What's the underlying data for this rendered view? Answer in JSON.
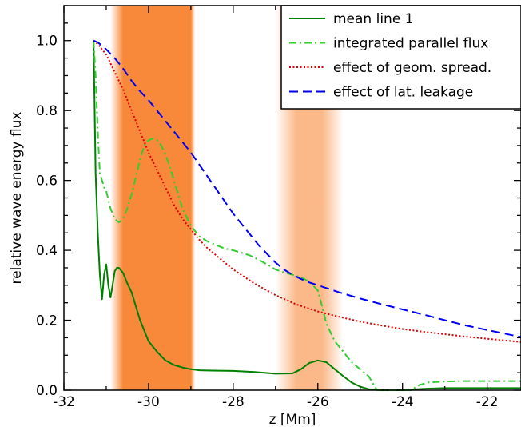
{
  "chart_data": {
    "type": "line",
    "title": "",
    "xlabel": "z [Mm]",
    "ylabel": "relative wave energy flux",
    "xlim": [
      -32,
      -21.2
    ],
    "ylim": [
      0,
      1.1
    ],
    "x_ticks": [
      -32,
      -30,
      -28,
      -26,
      -24,
      -22
    ],
    "x_tick_labels": [
      "-32",
      "-30",
      "-28",
      "-26",
      "-24",
      "-22"
    ],
    "y_ticks": [
      0.0,
      0.2,
      0.4,
      0.6,
      0.8,
      1.0
    ],
    "y_tick_labels": [
      "0.0",
      "0.2",
      "0.4",
      "0.6",
      "0.8",
      "1.0"
    ],
    "grid": false,
    "legend_position": "top-right",
    "shaded_bands": [
      {
        "x_start": -30.9,
        "x_end": -28.9,
        "core_start": -30.6,
        "core_end": -29.0,
        "color": "#f9893a"
      },
      {
        "x_start": -27.0,
        "x_end": -25.4,
        "core_start": -26.5,
        "core_end": -25.9,
        "color": "#fbb888"
      }
    ],
    "series": [
      {
        "name": "mean line 1",
        "color": "#008000",
        "style": "solid",
        "x": [
          -31.3,
          -31.25,
          -31.2,
          -31.15,
          -31.1,
          -31.05,
          -31.0,
          -30.95,
          -30.9,
          -30.85,
          -30.8,
          -30.75,
          -30.7,
          -30.6,
          -30.5,
          -30.4,
          -30.3,
          -30.2,
          -30.0,
          -29.8,
          -29.6,
          -29.4,
          -29.2,
          -29.0,
          -28.8,
          -28.5,
          -28.0,
          -27.5,
          -27.0,
          -26.6,
          -26.4,
          -26.2,
          -26.0,
          -25.8,
          -25.6,
          -25.4,
          -25.2,
          -25.0,
          -24.8,
          -24.5,
          -24.0,
          -23.5,
          -23.0,
          -22.5,
          -22.0,
          -21.2
        ],
        "y": [
          1.0,
          0.62,
          0.45,
          0.33,
          0.26,
          0.33,
          0.36,
          0.3,
          0.265,
          0.3,
          0.34,
          0.35,
          0.35,
          0.335,
          0.305,
          0.28,
          0.24,
          0.2,
          0.14,
          0.11,
          0.085,
          0.072,
          0.065,
          0.06,
          0.057,
          0.056,
          0.055,
          0.052,
          0.047,
          0.048,
          0.06,
          0.078,
          0.085,
          0.08,
          0.06,
          0.04,
          0.022,
          0.01,
          0.003,
          0.0,
          0.0,
          0.004,
          0.006,
          0.006,
          0.006,
          0.006
        ]
      },
      {
        "name": "integrated parallel flux",
        "color": "#32cd32",
        "style": "dashdot",
        "x": [
          -31.3,
          -31.25,
          -31.2,
          -31.15,
          -31.1,
          -31.05,
          -31.0,
          -30.9,
          -30.8,
          -30.7,
          -30.6,
          -30.5,
          -30.4,
          -30.3,
          -30.2,
          -30.1,
          -30.0,
          -29.9,
          -29.8,
          -29.7,
          -29.6,
          -29.5,
          -29.4,
          -29.3,
          -29.2,
          -29.0,
          -28.8,
          -28.6,
          -28.4,
          -28.2,
          -28.0,
          -27.8,
          -27.6,
          -27.4,
          -27.2,
          -27.0,
          -26.8,
          -26.6,
          -26.4,
          -26.2,
          -26.0,
          -25.9,
          -25.8,
          -25.6,
          -25.4,
          -25.2,
          -25.0,
          -24.8,
          -24.6,
          -24.4,
          -24.2,
          -24.0,
          -23.8,
          -23.6,
          -23.4,
          -23.0,
          -22.5,
          -22.0,
          -21.2
        ],
        "y": [
          1.0,
          0.9,
          0.74,
          0.62,
          0.6,
          0.58,
          0.57,
          0.52,
          0.49,
          0.48,
          0.49,
          0.52,
          0.56,
          0.61,
          0.66,
          0.7,
          0.715,
          0.72,
          0.715,
          0.7,
          0.675,
          0.64,
          0.6,
          0.56,
          0.52,
          0.47,
          0.44,
          0.425,
          0.415,
          0.405,
          0.4,
          0.393,
          0.385,
          0.373,
          0.36,
          0.345,
          0.337,
          0.33,
          0.323,
          0.31,
          0.285,
          0.24,
          0.19,
          0.14,
          0.11,
          0.08,
          0.06,
          0.04,
          0.0,
          0.0,
          0.0,
          0.0,
          0.0,
          0.015,
          0.022,
          0.025,
          0.026,
          0.026,
          0.026
        ]
      },
      {
        "name": "effect of geom. spread.",
        "color": "#dd0000",
        "style": "dotted",
        "x": [
          -31.3,
          -31.2,
          -31.0,
          -30.8,
          -30.6,
          -30.4,
          -30.2,
          -30.0,
          -29.8,
          -29.6,
          -29.4,
          -29.2,
          -29.0,
          -28.8,
          -28.6,
          -28.4,
          -28.2,
          -28.0,
          -27.5,
          -27.0,
          -26.5,
          -26.0,
          -25.5,
          -25.0,
          -24.5,
          -24.0,
          -23.5,
          -23.0,
          -22.5,
          -22.0,
          -21.2
        ],
        "y": [
          1.0,
          0.99,
          0.96,
          0.91,
          0.86,
          0.8,
          0.74,
          0.68,
          0.63,
          0.58,
          0.53,
          0.49,
          0.46,
          0.43,
          0.405,
          0.385,
          0.365,
          0.345,
          0.305,
          0.272,
          0.245,
          0.225,
          0.21,
          0.196,
          0.185,
          0.175,
          0.167,
          0.16,
          0.153,
          0.147,
          0.138
        ]
      },
      {
        "name": "effect of lat. leakage",
        "color": "#0000ee",
        "style": "dashed",
        "x": [
          -31.3,
          -31.2,
          -31.0,
          -30.8,
          -30.6,
          -30.4,
          -30.2,
          -30.0,
          -29.8,
          -29.6,
          -29.4,
          -29.2,
          -29.0,
          -28.8,
          -28.6,
          -28.4,
          -28.2,
          -28.0,
          -27.8,
          -27.6,
          -27.4,
          -27.2,
          -27.0,
          -26.8,
          -26.6,
          -26.4,
          -26.2,
          -26.0,
          -25.8,
          -25.5,
          -25.0,
          -24.5,
          -24.0,
          -23.5,
          -23.0,
          -22.5,
          -22.0,
          -21.2
        ],
        "y": [
          1.0,
          0.995,
          0.975,
          0.95,
          0.92,
          0.885,
          0.855,
          0.83,
          0.8,
          0.77,
          0.74,
          0.71,
          0.68,
          0.645,
          0.61,
          0.575,
          0.54,
          0.505,
          0.475,
          0.445,
          0.415,
          0.39,
          0.365,
          0.345,
          0.33,
          0.318,
          0.308,
          0.3,
          0.292,
          0.28,
          0.262,
          0.246,
          0.231,
          0.216,
          0.2,
          0.185,
          0.172,
          0.152
        ]
      }
    ]
  }
}
